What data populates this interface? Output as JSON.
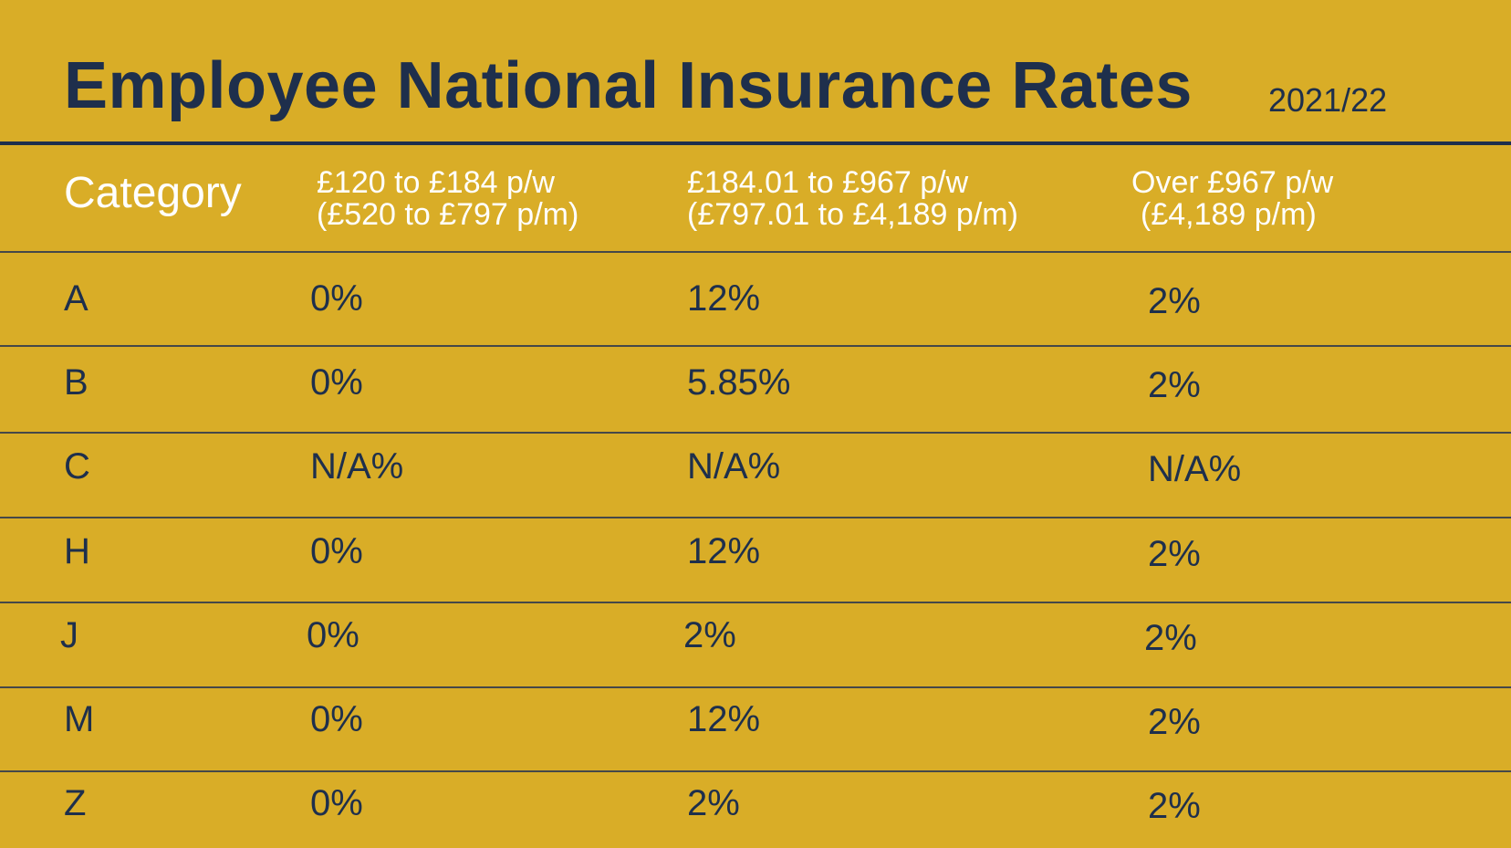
{
  "title": "Employee National Insurance Rates",
  "year": "2021/22",
  "table": {
    "header": {
      "category": "Category",
      "band1_line1": "£120 to £184 p/w",
      "band1_line2": "(£520 to £797 p/m)",
      "band2_line1": "£184.01 to £967 p/w",
      "band2_line2": "(£797.01 to £4,189 p/m)",
      "band3_line1": "Over £967 p/w",
      "band3_line2": "(£4,189 p/m)"
    },
    "rows": [
      {
        "category": "A",
        "band1": "0%",
        "band2": "12%",
        "band3": "2%"
      },
      {
        "category": "B",
        "band1": "0%",
        "band2": "5.85%",
        "band3": "2%"
      },
      {
        "category": "C",
        "band1": "N/A%",
        "band2": "N/A%",
        "band3": "N/A%"
      },
      {
        "category": "H",
        "band1": "0%",
        "band2": "12%",
        "band3": "2%"
      },
      {
        "category": "J",
        "band1": "0%",
        "band2": "2%",
        "band3": "2%"
      },
      {
        "category": "M",
        "band1": "0%",
        "band2": "12%",
        "band3": "2%"
      },
      {
        "category": "Z",
        "band1": "0%",
        "band2": "2%",
        "band3": "2%"
      }
    ]
  },
  "colors": {
    "background": "#d9ad27",
    "title": "#1e2f4c",
    "header_text": "#ffffff",
    "cell_text": "#1e2f4c",
    "rule": "#1e2f4c"
  }
}
